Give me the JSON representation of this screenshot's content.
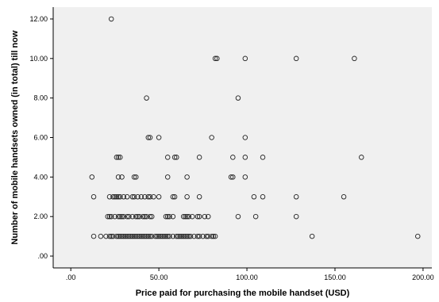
{
  "chart_data": {
    "type": "scatter",
    "xlabel": "Price paid for purchasing the mobile handset (USD)",
    "ylabel": "Number of mobile handsets owned (in total) till now",
    "xlim": [
      -10,
      205
    ],
    "ylim": [
      -0.6,
      12.6
    ],
    "x_ticks": [
      0,
      50,
      100,
      150,
      200
    ],
    "x_tick_labels": [
      ".00",
      "50.00",
      "100.00",
      "150.00",
      "200.00"
    ],
    "y_ticks": [
      0,
      2,
      4,
      6,
      8,
      10,
      12
    ],
    "y_tick_labels": [
      ".00",
      "2.00",
      "4.00",
      "6.00",
      "8.00",
      "10.00",
      "12.00"
    ],
    "grid": false,
    "colors": {
      "plot_background": "#f0f0f0",
      "marker_stroke": "#222222",
      "axis": "#000000"
    },
    "series": [
      {
        "x": [
          13,
          17,
          20,
          22,
          23,
          24,
          26,
          27,
          28,
          29,
          30,
          31,
          32,
          33,
          34,
          35,
          36,
          37,
          38,
          39,
          40,
          41,
          42,
          43,
          44,
          45,
          46,
          48,
          49,
          50,
          51,
          52,
          53,
          54,
          55,
          56,
          58,
          60,
          61,
          62,
          63,
          64,
          65,
          66,
          67,
          68,
          70,
          72,
          73,
          75,
          77,
          78,
          80,
          81,
          82,
          137,
          197,
          21,
          22,
          23,
          25,
          27,
          28,
          29,
          30,
          32,
          33,
          35,
          37,
          38,
          39,
          41,
          42,
          43,
          45,
          46,
          54,
          55,
          56,
          58,
          64,
          65,
          66,
          67,
          69,
          72,
          73,
          76,
          78,
          95,
          105,
          128,
          13,
          22,
          24,
          25,
          26,
          27,
          28,
          30,
          32,
          35,
          36,
          38,
          40,
          42,
          44,
          45,
          47,
          50,
          58,
          59,
          66,
          73,
          104,
          109,
          128,
          155,
          12,
          27,
          29,
          36,
          37,
          55,
          66,
          91,
          92,
          99,
          26,
          27,
          28,
          55,
          59,
          60,
          73,
          92,
          99,
          109,
          165,
          44,
          45,
          50,
          80,
          99,
          43,
          95,
          82,
          83,
          99,
          128,
          161,
          23
        ],
        "y": [
          1,
          1,
          1,
          1,
          1,
          1,
          1,
          1,
          1,
          1,
          1,
          1,
          1,
          1,
          1,
          1,
          1,
          1,
          1,
          1,
          1,
          1,
          1,
          1,
          1,
          1,
          1,
          1,
          1,
          1,
          1,
          1,
          1,
          1,
          1,
          1,
          1,
          1,
          1,
          1,
          1,
          1,
          1,
          1,
          1,
          1,
          1,
          1,
          1,
          1,
          1,
          1,
          1,
          1,
          1,
          1,
          1,
          2,
          2,
          2,
          2,
          2,
          2,
          2,
          2,
          2,
          2,
          2,
          2,
          2,
          2,
          2,
          2,
          2,
          2,
          2,
          2,
          2,
          2,
          2,
          2,
          2,
          2,
          2,
          2,
          2,
          2,
          2,
          2,
          2,
          2,
          2,
          3,
          3,
          3,
          3,
          3,
          3,
          3,
          3,
          3,
          3,
          3,
          3,
          3,
          3,
          3,
          3,
          3,
          3,
          3,
          3,
          3,
          3,
          3,
          3,
          3,
          3,
          4,
          4,
          4,
          4,
          4,
          4,
          4,
          4,
          4,
          4,
          5,
          5,
          5,
          5,
          5,
          5,
          5,
          5,
          5,
          5,
          5,
          6,
          6,
          6,
          6,
          6,
          8,
          8,
          10,
          10,
          10,
          10,
          10,
          12
        ]
      }
    ]
  }
}
